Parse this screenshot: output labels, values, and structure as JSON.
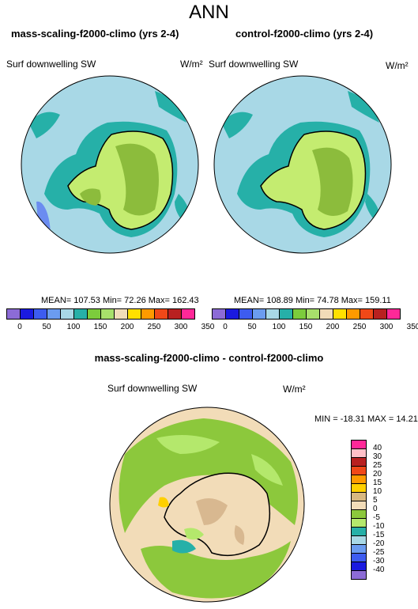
{
  "page_title": "ANN",
  "panels": [
    {
      "title": "mass-scaling-f2000-climo (yrs 2-4)",
      "variable": "Surf downwelling SW",
      "units": "W/m²",
      "stats": "MEAN= 107.53  Min=  72.26  Max= 162.43"
    },
    {
      "title": "control-f2000-climo (yrs 2-4)",
      "variable": "Surf downwelling SW",
      "units": "W/m²",
      "stats": "MEAN= 108.89  Min=  74.78  Max= 159.11"
    }
  ],
  "diff_panel": {
    "title": "mass-scaling-f2000-climo - control-f2000-climo",
    "variable": "Surf downwelling SW",
    "units": "W/m²",
    "stats": "MIN = -18.31 MAX =  14.21"
  },
  "colorbar_main": {
    "colors": [
      "#8c6bd6",
      "#1a1ae0",
      "#3d5cf0",
      "#6b9cf0",
      "#a8d8e6",
      "#26b0a8",
      "#7ccc3c",
      "#a8e06b",
      "#f2dcb8",
      "#ffe000",
      "#ff9a00",
      "#f04818",
      "#b82020",
      "#ff2898"
    ],
    "labels": [
      "0",
      "50",
      "100",
      "150",
      "200",
      "250",
      "300",
      "350"
    ],
    "label_box_index": [
      1,
      3,
      5,
      7,
      9,
      11,
      13,
      15
    ]
  },
  "colorbar_diff": {
    "colors": [
      "#ff2898",
      "#ffc0c8",
      "#b82020",
      "#f04818",
      "#ff9a00",
      "#ffd000",
      "#d8b880",
      "#f2dcb8",
      "#8cc83c",
      "#b4e86c",
      "#26b0a8",
      "#a8d8e6",
      "#6b9cf0",
      "#3d5cf0",
      "#1a1ae0",
      "#8c6bd6"
    ],
    "labels": [
      "40",
      "30",
      "25",
      "20",
      "15",
      "10",
      "5",
      "0",
      "-5",
      "-10",
      "-15",
      "-20",
      "-25",
      "-30",
      "-40"
    ]
  },
  "map_colors": {
    "ocean_main": "#a8d8e6",
    "teal": "#26b0a8",
    "light_green": "#c4ec70",
    "olive": "#8cbc3c",
    "blue_patch": "#6b8cf0",
    "diff_bg": "#f2dcb8",
    "diff_green": "#8cc83c",
    "diff_light_green": "#b4e86c",
    "diff_brown": "#d8b890",
    "diff_yellow": "#ffd000"
  }
}
